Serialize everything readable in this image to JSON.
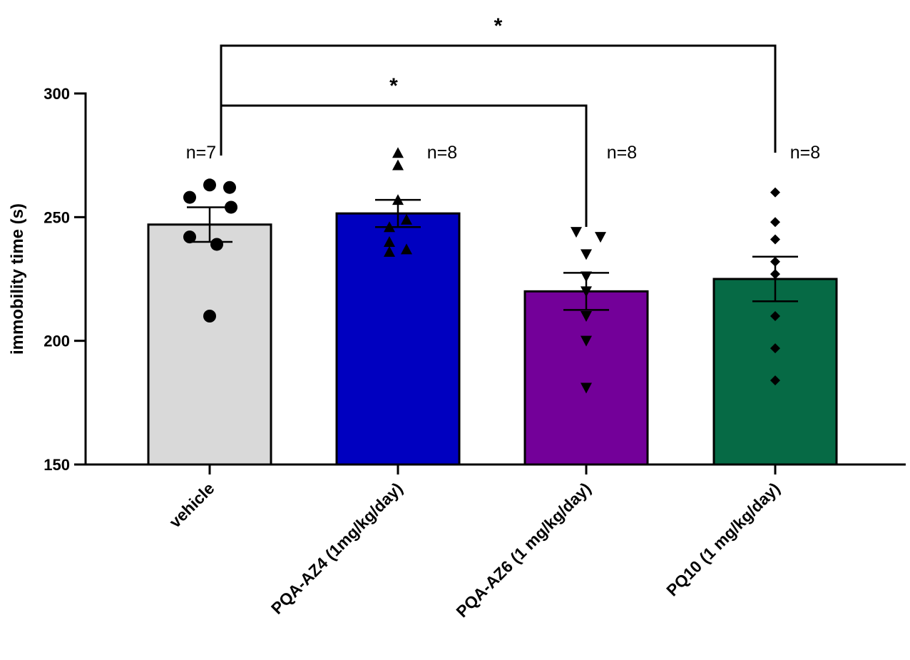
{
  "chart_data": {
    "type": "bar",
    "title": "",
    "xlabel": "",
    "ylabel": "immobility time (s)",
    "ylim": [
      150,
      300
    ],
    "yticks": [
      150,
      200,
      250,
      300
    ],
    "grid": false,
    "categories": [
      "vehicle",
      "PQA-AZ4 (1mg/kg/day)",
      "PQA-AZ6 (1 mg/kg/day)",
      "PQ10 (1 mg/kg/day)"
    ],
    "series": [
      {
        "name": "vehicle",
        "mean": 247,
        "sem": 7,
        "color": "#d9d9d9",
        "marker": "circle",
        "n_label": "n=7",
        "points": [
          263,
          262,
          258,
          254,
          242,
          239,
          210
        ]
      },
      {
        "name": "PQA-AZ4 (1mg/kg/day)",
        "mean": 251.5,
        "sem": 5.5,
        "color": "#0000c0",
        "marker": "triangle-up",
        "n_label": "n=8",
        "points": [
          276,
          271,
          257,
          249,
          246,
          240,
          237,
          236
        ]
      },
      {
        "name": "PQA-AZ6 (1 mg/kg/day)",
        "mean": 220,
        "sem": 7.5,
        "color": "#730099",
        "marker": "triangle-down",
        "n_label": "n=8",
        "points": [
          244,
          242,
          235,
          226,
          220,
          210,
          200,
          181
        ]
      },
      {
        "name": "PQ10 (1 mg/kg/day)",
        "mean": 225,
        "sem": 9,
        "color": "#066a45",
        "marker": "diamond",
        "n_label": "n=8",
        "points": [
          260,
          248,
          241,
          232,
          227,
          210,
          197,
          184
        ]
      }
    ],
    "significance": [
      {
        "from": "vehicle",
        "to": "PQA-AZ6 (1 mg/kg/day)",
        "label": "*"
      },
      {
        "from": "vehicle",
        "to": "PQ10 (1 mg/kg/day)",
        "label": "*"
      }
    ]
  }
}
